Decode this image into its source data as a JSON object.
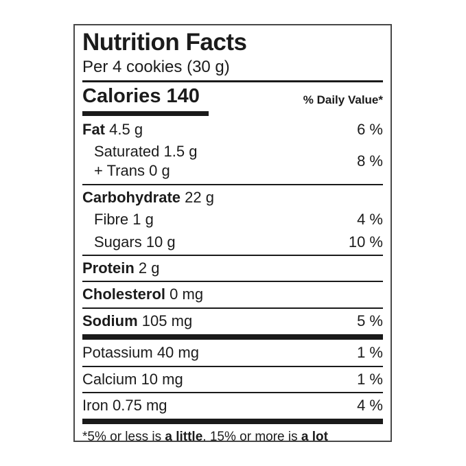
{
  "label": {
    "title": "Nutrition Facts",
    "serving": "Per 4 cookies (30 g)",
    "calories": "Calories 140",
    "daily_value_header": "% Daily Value*",
    "fat": {
      "bold": "Fat",
      "amount": "4.5 g",
      "pct": "6 %"
    },
    "saturated": {
      "line1": "Saturated 1.5 g",
      "line2": "+ Trans 0 g",
      "pct": "8 %"
    },
    "carbohydrate": {
      "bold": "Carbohydrate",
      "amount": "22 g"
    },
    "fibre": {
      "text": "Fibre 1 g",
      "pct": "4 %"
    },
    "sugars": {
      "text": "Sugars 10 g",
      "pct": "10 %"
    },
    "protein": {
      "bold": "Protein",
      "amount": "2 g"
    },
    "cholesterol": {
      "bold": "Cholesterol",
      "amount": "0 mg"
    },
    "sodium": {
      "bold": "Sodium",
      "amount": "105 mg",
      "pct": "5 %"
    },
    "potassium": {
      "text": "Potassium 40 mg",
      "pct": "1 %"
    },
    "calcium": {
      "text": "Calcium 10 mg",
      "pct": "1 %"
    },
    "iron": {
      "text": "Iron 0.75 mg",
      "pct": "4 %"
    },
    "footnote": {
      "part1": "*5% or less is ",
      "bold1": "a little",
      "part2": ", 15% or more is ",
      "bold2": "a lot"
    }
  }
}
